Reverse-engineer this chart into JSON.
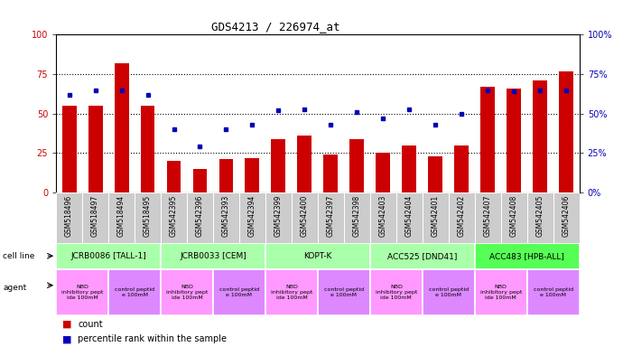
{
  "title": "GDS4213 / 226974_at",
  "samples": [
    "GSM518496",
    "GSM518497",
    "GSM518494",
    "GSM518495",
    "GSM542395",
    "GSM542396",
    "GSM542393",
    "GSM542394",
    "GSM542399",
    "GSM542400",
    "GSM542397",
    "GSM542398",
    "GSM542403",
    "GSM542404",
    "GSM542401",
    "GSM542402",
    "GSM542407",
    "GSM542408",
    "GSM542405",
    "GSM542406"
  ],
  "counts": [
    55,
    55,
    82,
    55,
    20,
    15,
    21,
    22,
    34,
    36,
    24,
    34,
    25,
    30,
    23,
    30,
    67,
    66,
    71,
    77
  ],
  "percentiles": [
    62,
    65,
    65,
    62,
    40,
    29,
    40,
    43,
    52,
    53,
    43,
    51,
    47,
    53,
    43,
    50,
    65,
    64,
    65,
    65
  ],
  "bar_color": "#cc0000",
  "dot_color": "#0000bb",
  "cell_lines": [
    {
      "label": "JCRB0086 [TALL-1]",
      "start": 0,
      "end": 4,
      "color": "#aaffaa"
    },
    {
      "label": "JCRB0033 [CEM]",
      "start": 4,
      "end": 8,
      "color": "#aaffaa"
    },
    {
      "label": "KOPT-K",
      "start": 8,
      "end": 12,
      "color": "#aaffaa"
    },
    {
      "label": "ACC525 [DND41]",
      "start": 12,
      "end": 16,
      "color": "#aaffaa"
    },
    {
      "label": "ACC483 [HPB-ALL]",
      "start": 16,
      "end": 20,
      "color": "#55ff55"
    }
  ],
  "agents": [
    {
      "label": "NBD\ninhibitory pept\nide 100mM",
      "start": 0,
      "end": 2,
      "color": "#ff99ff"
    },
    {
      "label": "control peptid\ne 100mM",
      "start": 2,
      "end": 4,
      "color": "#dd88ff"
    },
    {
      "label": "NBD\ninhibitory pept\nide 100mM",
      "start": 4,
      "end": 6,
      "color": "#ff99ff"
    },
    {
      "label": "control peptid\ne 100mM",
      "start": 6,
      "end": 8,
      "color": "#dd88ff"
    },
    {
      "label": "NBD\ninhibitory pept\nide 100mM",
      "start": 8,
      "end": 10,
      "color": "#ff99ff"
    },
    {
      "label": "control peptid\ne 100mM",
      "start": 10,
      "end": 12,
      "color": "#dd88ff"
    },
    {
      "label": "NBD\ninhibitory pept\nide 100mM",
      "start": 12,
      "end": 14,
      "color": "#ff99ff"
    },
    {
      "label": "control peptid\ne 100mM",
      "start": 14,
      "end": 16,
      "color": "#dd88ff"
    },
    {
      "label": "NBD\ninhibitory pept\nide 100mM",
      "start": 16,
      "end": 18,
      "color": "#ff99ff"
    },
    {
      "label": "control peptid\ne 100mM",
      "start": 18,
      "end": 20,
      "color": "#dd88ff"
    }
  ],
  "yticks": [
    0,
    25,
    50,
    75,
    100
  ],
  "plot_bg_color": "#ffffff",
  "tick_bg_color": "#cccccc",
  "fig_bg_color": "#ffffff"
}
